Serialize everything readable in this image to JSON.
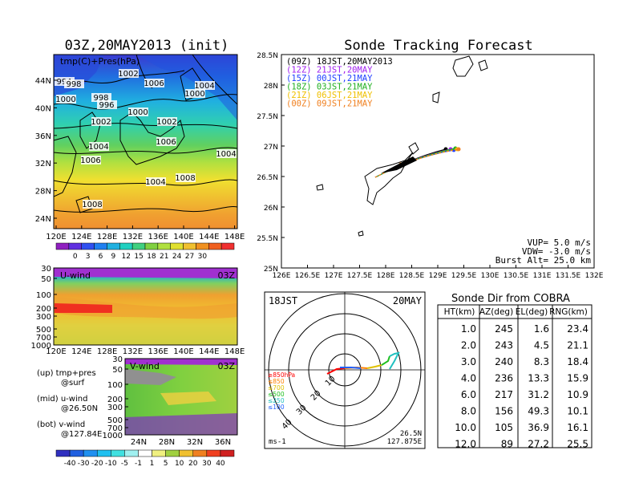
{
  "surface_panel": {
    "title": "03Z,20MAY2013 (init)",
    "label": "tmp(C)+Pres(hPa)",
    "lat_labels": [
      "44N",
      "40N",
      "36N",
      "32N",
      "28N",
      "24N"
    ],
    "lon_labels": [
      "120E",
      "124E",
      "128E",
      "132E",
      "136E",
      "140E",
      "144E",
      "148E"
    ],
    "pressure_labels": [
      "994",
      "998",
      "1002",
      "1006",
      "1004",
      "1000",
      "998",
      "996",
      "1000",
      "1002",
      "1002",
      "1000",
      "1004",
      "1006",
      "1004",
      "1006",
      "1004",
      "1008",
      "1008"
    ],
    "colorbar_ticks": [
      "0",
      "3",
      "6",
      "9",
      "12",
      "15",
      "18",
      "21",
      "24",
      "27",
      "30"
    ]
  },
  "uwind_panel": {
    "label": "U-wind",
    "time": "03Z",
    "levels": [
      "30",
      "50",
      "100",
      "200",
      "300",
      "500",
      "700",
      "1000"
    ],
    "lon_labels": [
      "120E",
      "124E",
      "128E",
      "132E",
      "136E",
      "140E",
      "144E",
      "148E"
    ]
  },
  "vwind_panel": {
    "label": "V-wind",
    "time": "03Z",
    "levels": [
      "30",
      "50",
      "100",
      "200",
      "300",
      "500",
      "700",
      "1000"
    ],
    "lat_labels": [
      "24N",
      "28N",
      "32N",
      "36N"
    ],
    "colorbar_ticks": [
      "-40",
      "-30",
      "-20",
      "-10",
      "-5",
      "-1",
      "1",
      "5",
      "10",
      "20",
      "30",
      "40"
    ]
  },
  "legend_notes": {
    "up": "(up) tmp+pres",
    "up_sub": "@surf",
    "mid": "(mid) u-wind",
    "mid_sub": "@26.50N",
    "bot": "(bot) v-wind",
    "bot_sub": "@127.84E"
  },
  "tracking": {
    "title": "Sonde Tracking Forecast",
    "legend": [
      {
        "text": "(09Z) 18JST,20MAY2013",
        "color": "#000000"
      },
      {
        "text": "(12Z) 21JST,20MAY",
        "color": "#a020f0"
      },
      {
        "text": "(15Z) 00JST,21MAY",
        "color": "#2040ff"
      },
      {
        "text": "(18Z) 03JST,21MAY",
        "color": "#20b020"
      },
      {
        "text": "(21Z) 06JST,21MAY",
        "color": "#f0c000"
      },
      {
        "text": "(00Z) 09JST,21MAY",
        "color": "#f08020"
      }
    ],
    "lat_labels": [
      "28.5N",
      "28N",
      "27.5N",
      "27N",
      "26.5N",
      "26N",
      "25.5N",
      "25N"
    ],
    "lon_labels": [
      "126E",
      "126.5E",
      "127E",
      "127.5E",
      "128E",
      "128.5E",
      "129E",
      "129.5E",
      "130E",
      "130.5E",
      "131E",
      "131.5E",
      "132E"
    ],
    "vup": "VUP= 5.0 m/s",
    "vdw": "VDW= -3.0 m/s",
    "burst": "Burst Alt= 25.0 km"
  },
  "polar": {
    "time": "18JST",
    "date": "20MAY",
    "ring_labels": [
      "10",
      "20",
      "30",
      "40"
    ],
    "levels": [
      {
        "text": "≥850hPa",
        "color": "#ff0000"
      },
      {
        "text": "≤850",
        "color": "#ff8000"
      },
      {
        "text": "≤700",
        "color": "#e0c000"
      },
      {
        "text": "≤500",
        "color": "#20c020"
      },
      {
        "text": "≤250",
        "color": "#20c0c0"
      },
      {
        "text": "≤100",
        "color": "#2060ff"
      }
    ],
    "unit": "ms-1",
    "loc_lat": "26.5N",
    "loc_lon": "127.875E"
  },
  "chart_data": {
    "type": "table",
    "title": "Sonde Dir from COBRA",
    "columns": [
      "HT(km)",
      "AZ(deg)",
      "EL(deg)",
      "RNG(km)"
    ],
    "rows": [
      [
        "1.0",
        "245",
        "1.6",
        "23.4"
      ],
      [
        "2.0",
        "243",
        "4.5",
        "21.1"
      ],
      [
        "3.0",
        "240",
        "8.3",
        "18.4"
      ],
      [
        "4.0",
        "236",
        "13.3",
        "15.9"
      ],
      [
        "6.0",
        "217",
        "31.2",
        "10.9"
      ],
      [
        "8.0",
        "156",
        "49.3",
        "10.1"
      ],
      [
        "10.0",
        "105",
        "36.9",
        "16.1"
      ],
      [
        "12.0",
        "89",
        "27.2",
        "25.5"
      ]
    ]
  }
}
